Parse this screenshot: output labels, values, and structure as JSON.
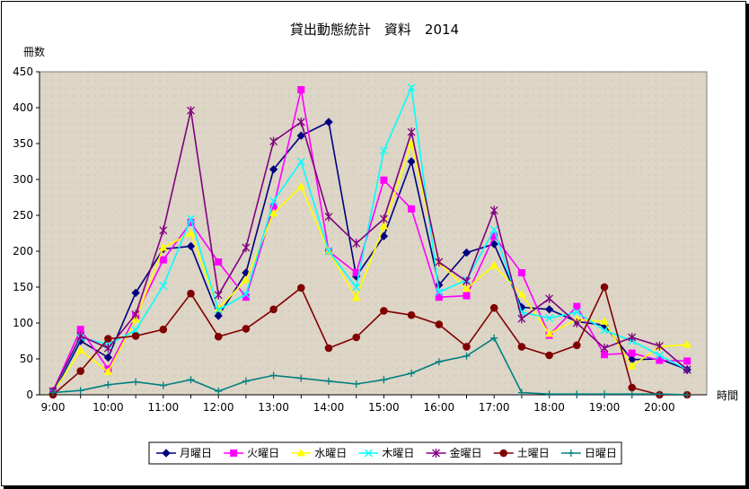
{
  "chart_data": {
    "type": "line",
    "title": "貸出動態統計　資料　2014",
    "ylabel": "冊数",
    "xlabel": "時間",
    "ylim": [
      0,
      450
    ],
    "yticks": [
      0,
      50,
      100,
      150,
      200,
      250,
      300,
      350,
      400,
      450
    ],
    "x": [
      "9:00",
      "9:30",
      "10:00",
      "10:30",
      "11:00",
      "11:30",
      "12:00",
      "12:30",
      "13:00",
      "13:30",
      "14:00",
      "14:30",
      "15:00",
      "15:30",
      "16:00",
      "16:30",
      "17:00",
      "17:30",
      "18:00",
      "18:30",
      "19:00",
      "19:30",
      "20:00",
      "20:30"
    ],
    "xticks": [
      "9:00",
      "10:00",
      "11:00",
      "12:00",
      "13:00",
      "14:00",
      "15:00",
      "16:00",
      "17:00",
      "18:00",
      "19:00",
      "20:00"
    ],
    "grid": false,
    "legend_position": "bottom",
    "background": "#ddd5c6",
    "series": [
      {
        "name": "月曜日",
        "color": "#000080",
        "marker": "diamond",
        "values": [
          2,
          75,
          52,
          142,
          203,
          207,
          110,
          170,
          314,
          361,
          380,
          165,
          221,
          325,
          153,
          198,
          210,
          122,
          119,
          102,
          97,
          49,
          50,
          35
        ]
      },
      {
        "name": "火曜日",
        "color": "#ff00ff",
        "marker": "square",
        "values": [
          5,
          91,
          36,
          110,
          188,
          240,
          185,
          136,
          262,
          425,
          200,
          170,
          299,
          259,
          136,
          138,
          221,
          170,
          83,
          123,
          56,
          58,
          48,
          47
        ]
      },
      {
        "name": "水曜日",
        "color": "#ffff00",
        "marker": "triangle",
        "values": [
          3,
          62,
          32,
          105,
          205,
          225,
          120,
          160,
          253,
          290,
          200,
          135,
          235,
          350,
          184,
          148,
          180,
          140,
          85,
          105,
          102,
          40,
          67,
          70
        ]
      },
      {
        "name": "木曜日",
        "color": "#00ffff",
        "marker": "x",
        "values": [
          4,
          80,
          70,
          90,
          152,
          245,
          118,
          140,
          270,
          325,
          200,
          150,
          340,
          428,
          143,
          160,
          230,
          115,
          107,
          115,
          90,
          75,
          55,
          35
        ]
      },
      {
        "name": "金曜日",
        "color": "#800080",
        "marker": "star",
        "values": [
          5,
          82,
          65,
          112,
          229,
          396,
          139,
          205,
          353,
          380,
          248,
          211,
          245,
          366,
          185,
          158,
          257,
          106,
          134,
          100,
          65,
          80,
          68,
          35
        ]
      },
      {
        "name": "土曜日",
        "color": "#800000",
        "marker": "circle",
        "values": [
          0,
          33,
          78,
          82,
          91,
          141,
          81,
          92,
          119,
          149,
          65,
          80,
          117,
          111,
          98,
          67,
          121,
          67,
          55,
          69,
          150,
          10,
          0,
          0
        ]
      },
      {
        "name": "日曜日",
        "color": "#008080",
        "marker": "plus",
        "values": [
          3,
          6,
          14,
          18,
          13,
          21,
          5,
          19,
          27,
          23,
          19,
          15,
          21,
          30,
          46,
          54,
          79,
          3,
          1,
          1,
          1,
          1,
          1,
          0
        ]
      }
    ]
  }
}
